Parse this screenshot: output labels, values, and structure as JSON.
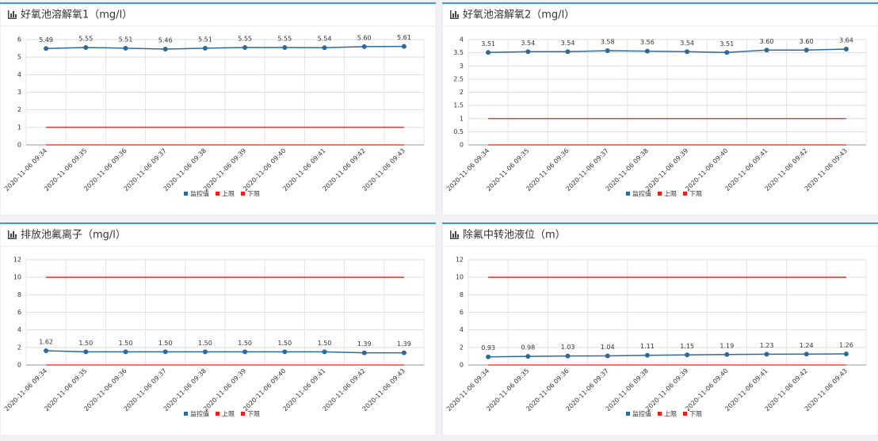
{
  "chart_data": [
    {
      "type": "line",
      "title": "好氧池溶解氧1（mg/l）",
      "categories": [
        "2020-11-06 09:34",
        "2020-11-06 09:35",
        "2020-11-06 09:36",
        "2020-11-06 09:37",
        "2020-11-06 09:38",
        "2020-11-06 09:39",
        "2020-11-06 09:40",
        "2020-11-06 09:41",
        "2020-11-06 09:42",
        "2020-11-06 09:43"
      ],
      "series": [
        {
          "name": "监控值",
          "color": "#2d6a9c",
          "values": [
            5.49,
            5.55,
            5.51,
            5.46,
            5.51,
            5.55,
            5.55,
            5.54,
            5.6,
            5.61
          ],
          "value_labels": [
            "5.49",
            "5.55",
            "5.51",
            "5.46",
            "5.51",
            "5.55",
            "5.55",
            "5.54",
            "5.60",
            "5.61"
          ]
        },
        {
          "name": "上限",
          "color": "#e8201c",
          "values": [
            1,
            1,
            1,
            1,
            1,
            1,
            1,
            1,
            1,
            1
          ]
        },
        {
          "name": "下限",
          "color": "#e8201c",
          "values": [
            0,
            0,
            0,
            0,
            0,
            0,
            0,
            0,
            0,
            0
          ]
        }
      ],
      "ylim": [
        0,
        6
      ],
      "yticks": [
        0,
        1,
        2,
        3,
        4,
        5,
        6
      ],
      "grid": true
    },
    {
      "type": "line",
      "title": "好氧池溶解氧2（mg/l）",
      "categories": [
        "2020-11-06 09:34",
        "2020-11-06 09:35",
        "2020-11-06 09:36",
        "2020-11-06 09:37",
        "2020-11-06 09:38",
        "2020-11-06 09:39",
        "2020-11-06 09:40",
        "2020-11-06 09:41",
        "2020-11-06 09:42",
        "2020-11-06 09:43"
      ],
      "series": [
        {
          "name": "监控值",
          "color": "#2d6a9c",
          "values": [
            3.51,
            3.54,
            3.54,
            3.58,
            3.56,
            3.54,
            3.51,
            3.6,
            3.6,
            3.64
          ],
          "value_labels": [
            "3.51",
            "3.54",
            "3.54",
            "3.58",
            "3.56",
            "3.54",
            "3.51",
            "3.60",
            "3.60",
            "3.64"
          ]
        },
        {
          "name": "上限",
          "color": "#e8201c",
          "values": [
            1,
            1,
            1,
            1,
            1,
            1,
            1,
            1,
            1,
            1
          ]
        },
        {
          "name": "下限",
          "color": "#e8201c",
          "values": [
            0,
            0,
            0,
            0,
            0,
            0,
            0,
            0,
            0,
            0
          ]
        }
      ],
      "ylim": [
        0,
        4
      ],
      "yticks": [
        0,
        0.5,
        1,
        1.5,
        2,
        2.5,
        3,
        3.5,
        4
      ],
      "grid": true
    },
    {
      "type": "line",
      "title": "排放池氟离子（mg/l）",
      "categories": [
        "2020-11-06 09:34",
        "2020-11-06 09:35",
        "2020-11-06 09:36",
        "2020-11-06 09:37",
        "2020-11-06 09:38",
        "2020-11-06 09:39",
        "2020-11-06 09:40",
        "2020-11-06 09:41",
        "2020-11-06 09:42",
        "2020-11-06 09:43"
      ],
      "series": [
        {
          "name": "监控值",
          "color": "#2d6a9c",
          "values": [
            1.62,
            1.5,
            1.5,
            1.5,
            1.5,
            1.5,
            1.5,
            1.5,
            1.39,
            1.39
          ],
          "value_labels": [
            "1.62",
            "1.50",
            "1.50",
            "1.50",
            "1.50",
            "1.50",
            "1.50",
            "1.50",
            "1.39",
            "1.39"
          ]
        },
        {
          "name": "上限",
          "color": "#e8201c",
          "values": [
            10,
            10,
            10,
            10,
            10,
            10,
            10,
            10,
            10,
            10
          ]
        },
        {
          "name": "下限",
          "color": "#e8201c",
          "values": [
            0,
            0,
            0,
            0,
            0,
            0,
            0,
            0,
            0,
            0
          ]
        }
      ],
      "ylim": [
        0,
        12
      ],
      "yticks": [
        0,
        2,
        4,
        6,
        8,
        10,
        12
      ],
      "grid": true
    },
    {
      "type": "line",
      "title": "除氟中转池液位（m）",
      "categories": [
        "2020-11-06 09:34",
        "2020-11-06 09:35",
        "2020-11-06 09:36",
        "2020-11-06 09:37",
        "2020-11-06 09:38",
        "2020-11-06 09:39",
        "2020-11-06 09:40",
        "2020-11-06 09:41",
        "2020-11-06 09:42",
        "2020-11-06 09:43"
      ],
      "series": [
        {
          "name": "监控值",
          "color": "#2d6a9c",
          "values": [
            0.93,
            0.98,
            1.03,
            1.04,
            1.11,
            1.15,
            1.19,
            1.23,
            1.24,
            1.26
          ],
          "value_labels": [
            "0.93",
            "0.98",
            "1.03",
            "1.04",
            "1.11",
            "1.15",
            "1.19",
            "1.23",
            "1.24",
            "1.26"
          ]
        },
        {
          "name": "上限",
          "color": "#e8201c",
          "values": [
            10,
            10,
            10,
            10,
            10,
            10,
            10,
            10,
            10,
            10
          ]
        },
        {
          "name": "下限",
          "color": "#e8201c",
          "values": [
            0,
            0,
            0,
            0,
            0,
            0,
            0,
            0,
            0,
            0
          ]
        }
      ],
      "ylim": [
        0,
        12
      ],
      "yticks": [
        0,
        2,
        4,
        6,
        8,
        10,
        12
      ],
      "grid": true
    }
  ]
}
